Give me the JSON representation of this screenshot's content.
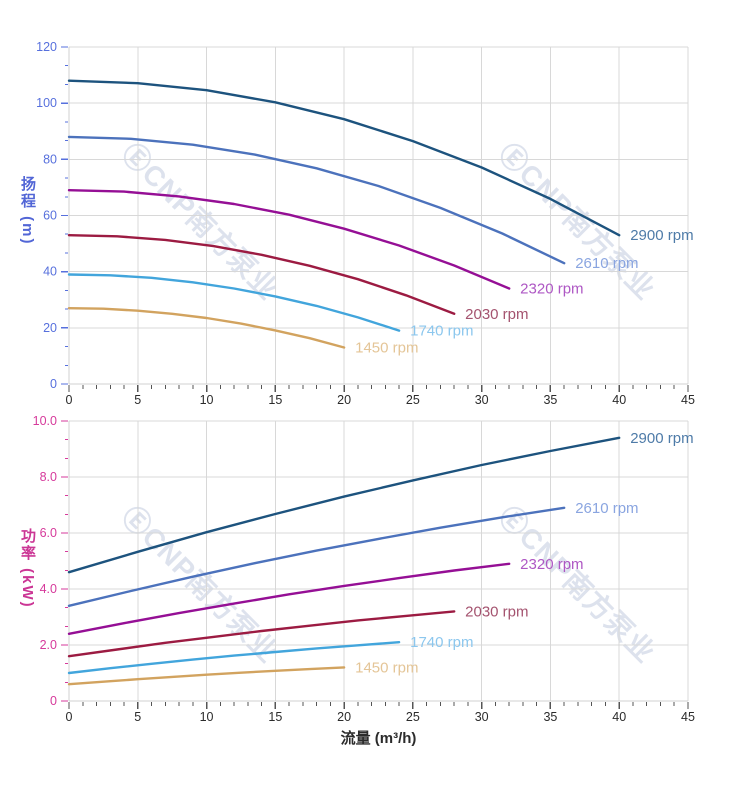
{
  "axis_titles": {
    "head": "扬程 (m)",
    "power": "功率 (kW)",
    "flow": "流量 (m³/h)"
  },
  "watermark": {
    "logo": "Ⓔ",
    "text": "CNP南方泵业",
    "color": "#dde2ed"
  },
  "colors": {
    "grid": "#d8d8d8",
    "axis_line": "#d0d0d0",
    "x_tick": "#555555",
    "x_label": "#2b2b2b",
    "head_axis": "#5770dd",
    "power_axis": "#d63a9b"
  },
  "chart_data": [
    {
      "type": "line",
      "name": "head-chart",
      "title": "",
      "xlabel": "流量 (m³/h)",
      "ylabel": "扬程 (m)",
      "xlim": [
        0,
        45
      ],
      "ylim": [
        0,
        120
      ],
      "grid": true,
      "legend_position": "curve-end",
      "x_ticks": {
        "major_step": 5,
        "minor_divisions": 5,
        "labels": [
          "0",
          "5",
          "10",
          "15",
          "20",
          "25",
          "30",
          "35",
          "40",
          "45"
        ]
      },
      "y_ticks": {
        "major_step": 20,
        "minor_divisions": 3,
        "labels": [
          "0",
          "20",
          "40",
          "60",
          "80",
          "100",
          "120"
        ]
      },
      "axis_color": "#5770dd",
      "series": [
        {
          "name": "2900 rpm",
          "color": "#1d537e",
          "label_color": "#4e7ba8",
          "x": [
            0,
            5,
            10,
            15,
            20,
            25,
            30,
            35,
            40
          ],
          "y": [
            108,
            107.1,
            104.6,
            100.3,
            94.3,
            86.5,
            77.1,
            65.9,
            53
          ]
        },
        {
          "name": "2610 rpm",
          "color": "#4c72bc",
          "label_color": "#8aa5e0",
          "x": [
            0,
            4.5,
            9,
            13.5,
            18,
            22.5,
            27,
            31.5,
            36
          ],
          "y": [
            88,
            87.3,
            85.2,
            81.7,
            76.8,
            70.5,
            62.7,
            53.6,
            43
          ]
        },
        {
          "name": "2320 rpm",
          "color": "#950f95",
          "label_color": "#ae57c4",
          "x": [
            0,
            4,
            8,
            12,
            16,
            20,
            24,
            28,
            32
          ],
          "y": [
            69,
            68.5,
            66.8,
            64.1,
            60.3,
            55.3,
            49.3,
            42.2,
            34
          ]
        },
        {
          "name": "2030 rpm",
          "color": "#9c1b42",
          "label_color": "#a4536f",
          "x": [
            0,
            3.5,
            7,
            10.5,
            14,
            17.5,
            21,
            24.5,
            28
          ],
          "y": [
            53,
            52.6,
            51.3,
            49.1,
            46,
            42.1,
            37.3,
            31.6,
            25
          ]
        },
        {
          "name": "1740 rpm",
          "color": "#42a5dc",
          "label_color": "#8cc7ee",
          "x": [
            0,
            3,
            6,
            9,
            12,
            15,
            18,
            21,
            24
          ],
          "y": [
            39,
            38.7,
            37.8,
            36.2,
            34,
            31.2,
            27.8,
            23.7,
            19
          ]
        },
        {
          "name": "1450 rpm",
          "color": "#d2a35f",
          "label_color": "#e4c597",
          "x": [
            0,
            2.5,
            5,
            7.5,
            10,
            12.5,
            15,
            17.5,
            20
          ],
          "y": [
            27,
            26.8,
            26.1,
            25,
            23.5,
            21.5,
            19.1,
            16.3,
            13
          ]
        }
      ]
    },
    {
      "type": "line",
      "name": "power-chart",
      "title": "",
      "xlabel": "流量 (m³/h)",
      "ylabel": "功率 (kW)",
      "xlim": [
        0,
        45
      ],
      "ylim": [
        0,
        10
      ],
      "grid": true,
      "legend_position": "curve-end",
      "x_ticks": {
        "major_step": 5,
        "minor_divisions": 5,
        "labels": [
          "0",
          "5",
          "10",
          "15",
          "20",
          "25",
          "30",
          "35",
          "40",
          "45"
        ]
      },
      "y_ticks": {
        "major_step": 2,
        "minor_divisions": 3,
        "labels": [
          "0",
          "2.0",
          "4.0",
          "6.0",
          "8.0",
          "10.0"
        ]
      },
      "axis_color": "#d63a9b",
      "series": [
        {
          "name": "2900 rpm",
          "color": "#1d537e",
          "label_color": "#4e7ba8",
          "x": [
            0,
            5,
            10,
            15,
            20,
            25,
            30,
            35,
            40
          ],
          "y": [
            4.6,
            5.33,
            6.03,
            6.68,
            7.3,
            7.88,
            8.43,
            8.93,
            9.4
          ]
        },
        {
          "name": "2610 rpm",
          "color": "#4c72bc",
          "label_color": "#8aa5e0",
          "x": [
            0,
            4.5,
            9,
            13.5,
            18,
            22.5,
            27,
            31.5,
            36
          ],
          "y": [
            3.4,
            3.93,
            4.44,
            4.92,
            5.37,
            5.79,
            6.19,
            6.56,
            6.9
          ]
        },
        {
          "name": "2320 rpm",
          "color": "#950f95",
          "label_color": "#ae57c4",
          "x": [
            0,
            4,
            8,
            12,
            16,
            20,
            24,
            28,
            32
          ],
          "y": [
            2.4,
            2.78,
            3.14,
            3.48,
            3.81,
            4.11,
            4.39,
            4.66,
            4.9
          ]
        },
        {
          "name": "2030 rpm",
          "color": "#9c1b42",
          "label_color": "#a4536f",
          "x": [
            0,
            3.5,
            7,
            10.5,
            14,
            17.5,
            21,
            24.5,
            28
          ],
          "y": [
            1.6,
            1.84,
            2.08,
            2.29,
            2.5,
            2.69,
            2.88,
            3.04,
            3.2
          ]
        },
        {
          "name": "1740 rpm",
          "color": "#42a5dc",
          "label_color": "#8cc7ee",
          "x": [
            0,
            3,
            6,
            9,
            12,
            15,
            18,
            21,
            24
          ],
          "y": [
            1.0,
            1.17,
            1.33,
            1.48,
            1.62,
            1.75,
            1.88,
            1.99,
            2.1
          ]
        },
        {
          "name": "1450 rpm",
          "color": "#d2a35f",
          "label_color": "#e4c597",
          "x": [
            0,
            2.5,
            5,
            7.5,
            10,
            12.5,
            15,
            17.5,
            20
          ],
          "y": [
            0.6,
            0.69,
            0.78,
            0.86,
            0.94,
            1.01,
            1.08,
            1.14,
            1.2
          ]
        }
      ]
    }
  ]
}
